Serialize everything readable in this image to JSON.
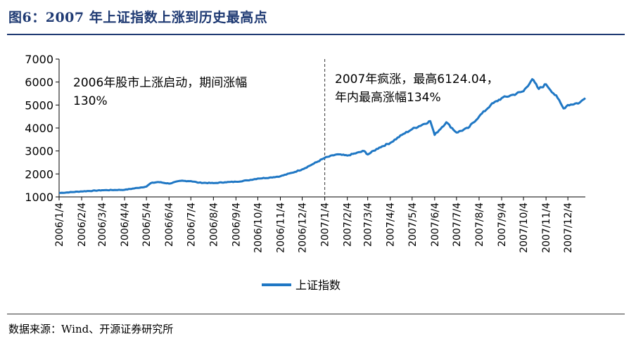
{
  "figure": {
    "title": "图6：2007 年上证指数上涨到历史最高点",
    "source": "数据来源：Wind、开源证券研究所"
  },
  "chart_data": {
    "type": "line",
    "title": "",
    "xlabel": "",
    "ylabel": "",
    "ylim": [
      1000,
      7000
    ],
    "yticks": [
      "1000",
      "2000",
      "3000",
      "4000",
      "5000",
      "6000",
      "7000"
    ],
    "xticks": [
      "2006/1/4",
      "2006/2/4",
      "2006/3/4",
      "2006/4/4",
      "2006/5/4",
      "2006/6/4",
      "2006/7/4",
      "2006/8/4",
      "2006/9/4",
      "2006/10/4",
      "2006/11/4",
      "2006/12/4",
      "2007/1/4",
      "2007/2/4",
      "2007/3/4",
      "2007/4/4",
      "2007/5/4",
      "2007/6/4",
      "2007/7/4",
      "2007/8/4",
      "2007/9/4",
      "2007/10/4",
      "2007/11/4",
      "2007/12/4"
    ],
    "grid": false,
    "legend_position": "bottom-center",
    "series_color": "#1f77c4",
    "series": [
      {
        "name": "上证指数",
        "x": [
          "2006/1/4",
          "2006/2/4",
          "2006/3/4",
          "2006/4/4",
          "2006/5/4",
          "2006/5/10",
          "2006/5/20",
          "2006/6/4",
          "2006/6/20",
          "2006/7/4",
          "2006/7/15",
          "2006/8/4",
          "2006/8/20",
          "2006/9/4",
          "2006/9/20",
          "2006/10/4",
          "2006/10/20",
          "2006/11/4",
          "2006/11/20",
          "2006/12/4",
          "2006/12/20",
          "2007/1/4",
          "2007/1/20",
          "2007/2/4",
          "2007/2/27",
          "2007/3/4",
          "2007/3/20",
          "2007/4/4",
          "2007/4/20",
          "2007/5/4",
          "2007/5/29",
          "2007/6/4",
          "2007/6/20",
          "2007/7/4",
          "2007/7/20",
          "2007/8/4",
          "2007/8/20",
          "2007/9/4",
          "2007/9/20",
          "2007/10/4",
          "2007/10/16",
          "2007/10/25",
          "2007/11/4",
          "2007/11/20",
          "2007/11/28",
          "2007/12/4",
          "2007/12/20",
          "2007/12/28"
        ],
        "values": [
          1170,
          1240,
          1290,
          1310,
          1450,
          1600,
          1650,
          1580,
          1700,
          1690,
          1620,
          1600,
          1640,
          1660,
          1720,
          1800,
          1840,
          1900,
          2050,
          2200,
          2450,
          2700,
          2850,
          2800,
          3000,
          2850,
          3150,
          3350,
          3700,
          3950,
          4300,
          3700,
          4250,
          3800,
          4000,
          4500,
          5000,
          5300,
          5450,
          5600,
          6124.04,
          5700,
          5900,
          5300,
          4850,
          5000,
          5100,
          5300
        ]
      }
    ],
    "annotations": [
      {
        "text_lines": [
          "2006年股市上涨启动，期间涨幅",
          "130%"
        ]
      },
      {
        "text_lines": [
          "2007年疯涨，最高6124.04，",
          "年内最高涨幅134%"
        ]
      }
    ],
    "divider_at": "2007/1/4"
  }
}
